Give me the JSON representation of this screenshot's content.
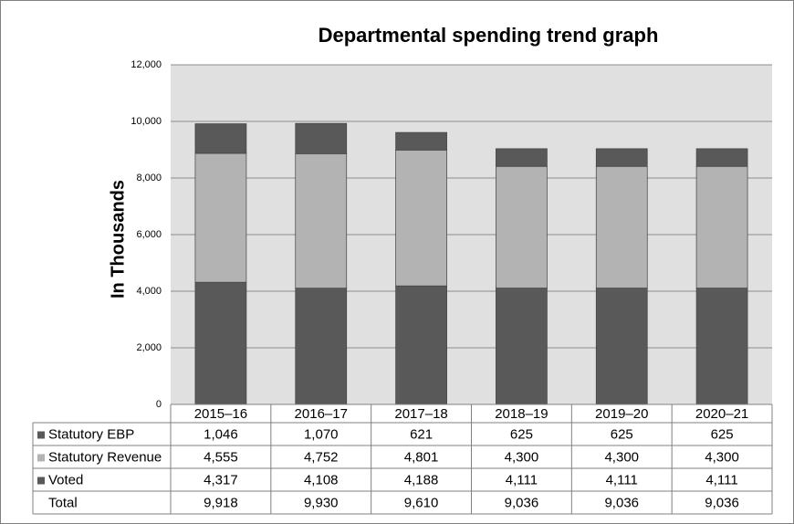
{
  "chart_data": {
    "type": "stacked-bar",
    "title": "Departmental spending trend graph",
    "y_label": "In Thousands",
    "categories": [
      "2015–16",
      "2016–17",
      "2017–18",
      "2018–19",
      "2019–20",
      "2020–21"
    ],
    "series": [
      {
        "name": "Statutory EBP",
        "color": "#595959",
        "values": [
          1046,
          1070,
          621,
          625,
          625,
          625
        ],
        "value_labels": [
          "1,046",
          "1,070",
          "621",
          "625",
          "625",
          "625"
        ]
      },
      {
        "name": "Statutory Revenue",
        "color": "#b3b3b3",
        "values": [
          4555,
          4752,
          4801,
          4300,
          4300,
          4300
        ],
        "value_labels": [
          "4,555",
          "4,752",
          "4,801",
          "4,300",
          "4,300",
          "4,300"
        ]
      },
      {
        "name": "Voted",
        "color": "#595959",
        "values": [
          4317,
          4108,
          4188,
          4111,
          4111,
          4111
        ],
        "value_labels": [
          "4,317",
          "4,108",
          "4,188",
          "4,111",
          "4,111",
          "4,111"
        ]
      }
    ],
    "totals": {
      "name": "Total",
      "values": [
        9918,
        9930,
        9610,
        9036,
        9036,
        9036
      ],
      "value_labels": [
        "9,918",
        "9,930",
        "9,610",
        "9,036",
        "9,036",
        "9,036"
      ]
    },
    "ylim": [
      0,
      12000
    ],
    "yticks": [
      0,
      {
        "value": 2000,
        "label": "2,000"
      },
      {
        "value": 4000,
        "label": "4,000"
      },
      {
        "value": 6000,
        "label": "6,000"
      },
      {
        "value": 8000,
        "label": "8,000"
      },
      {
        "value": 10000,
        "label": "10,000"
      },
      {
        "value": 12000,
        "label": "12,000"
      }
    ],
    "grid": true
  }
}
